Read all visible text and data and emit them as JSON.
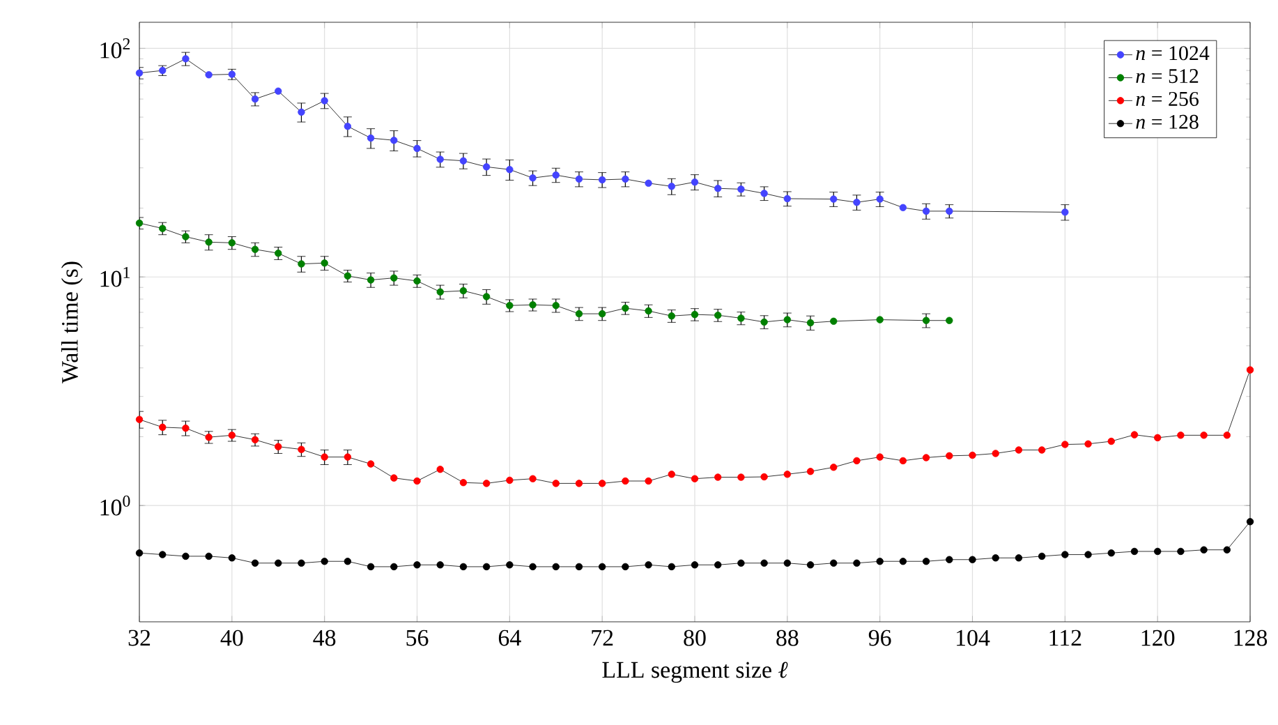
{
  "chart_data": {
    "type": "line",
    "xlabel": "LLL segment size *ℓ*",
    "ylabel": "Wall time (s)",
    "log": "y",
    "grid": true,
    "legend": "top right",
    "marker": "circle",
    "line_style": "solid",
    "xlim": [
      32,
      128
    ],
    "xticks": [
      32,
      40,
      48,
      56,
      64,
      72,
      80,
      88,
      96,
      104,
      112,
      120,
      128
    ],
    "ylim": [
      0.31,
      130
    ],
    "yticks": [
      {
        "value": 1,
        "label": "10$^{0}$"
      },
      {
        "value": 10,
        "label": "10$^{1}$"
      },
      {
        "value": 100,
        "label": "10$^{2}$"
      }
    ],
    "series": [
      {
        "name": "*n* = 1024",
        "color": "#4444ff",
        "x": [
          32,
          34,
          36,
          38,
          40,
          42,
          44,
          46,
          48,
          50,
          52,
          54,
          56,
          58,
          60,
          62,
          64,
          66,
          68,
          70,
          72,
          74,
          76,
          78,
          80,
          82,
          84,
          86,
          88,
          92,
          94,
          96,
          98,
          100,
          102,
          112
        ],
        "values": [
          78,
          80,
          90,
          76.6,
          77,
          60,
          65,
          52.6,
          59,
          45.6,
          40.5,
          39.6,
          36.5,
          32.7,
          32.2,
          30.3,
          29.5,
          27.1,
          27.9,
          26.8,
          26.6,
          26.8,
          25.7,
          24.9,
          26,
          24.4,
          24.2,
          23.2,
          22,
          21.9,
          21.2,
          21.9,
          20.1,
          19.4,
          19.4,
          19.2
        ],
        "errors": [
          4.5,
          4,
          6,
          null,
          4,
          4,
          null,
          5,
          4.5,
          4.5,
          4,
          4,
          3,
          2.5,
          2.5,
          2.5,
          3,
          2,
          2,
          2,
          2,
          2,
          null,
          2,
          2,
          2,
          1.6,
          1.6,
          1.6,
          1.6,
          1.6,
          1.6,
          null,
          1.5,
          1.3,
          1.5
        ]
      },
      {
        "name": "*n* = 512",
        "color": "#008000",
        "x": [
          32,
          34,
          36,
          38,
          40,
          42,
          44,
          46,
          48,
          50,
          52,
          54,
          56,
          58,
          60,
          62,
          64,
          66,
          68,
          70,
          72,
          74,
          76,
          78,
          80,
          82,
          84,
          86,
          88,
          90,
          92,
          96,
          100,
          102
        ],
        "values": [
          17.2,
          16.3,
          15,
          14.2,
          14.1,
          13.2,
          12.7,
          11.4,
          11.5,
          10.1,
          9.7,
          9.9,
          9.6,
          8.6,
          8.7,
          8.2,
          7.5,
          7.55,
          7.5,
          6.9,
          6.9,
          7.3,
          7.1,
          6.75,
          6.85,
          6.8,
          6.6,
          6.35,
          6.5,
          6.3,
          6.4,
          6.5,
          6.45,
          6.45
        ],
        "errors": [
          1,
          1,
          0.9,
          1.1,
          0.9,
          0.9,
          0.8,
          0.9,
          0.8,
          0.6,
          0.7,
          0.7,
          0.6,
          0.6,
          0.6,
          0.6,
          0.45,
          0.45,
          0.5,
          0.45,
          0.45,
          0.45,
          0.45,
          0.42,
          0.42,
          0.42,
          0.42,
          0.42,
          0.45,
          0.45,
          null,
          null,
          0.45,
          null
        ]
      },
      {
        "name": "*n* = 256",
        "color": "#ff0000",
        "x": [
          32,
          34,
          36,
          38,
          40,
          42,
          44,
          46,
          48,
          50,
          52,
          54,
          56,
          58,
          60,
          62,
          64,
          66,
          68,
          70,
          72,
          74,
          76,
          78,
          80,
          82,
          84,
          86,
          88,
          90,
          92,
          94,
          96,
          98,
          100,
          102,
          104,
          106,
          108,
          110,
          112,
          114,
          116,
          118,
          120,
          122,
          124,
          126,
          128
        ],
        "values": [
          2.38,
          2.2,
          2.18,
          1.99,
          2.03,
          1.94,
          1.81,
          1.76,
          1.63,
          1.63,
          1.52,
          1.32,
          1.28,
          1.44,
          1.26,
          1.25,
          1.29,
          1.31,
          1.25,
          1.25,
          1.25,
          1.28,
          1.28,
          1.37,
          1.31,
          1.33,
          1.33,
          1.335,
          1.37,
          1.41,
          1.47,
          1.57,
          1.63,
          1.57,
          1.62,
          1.65,
          1.66,
          1.69,
          1.75,
          1.75,
          1.85,
          1.86,
          1.91,
          2.04,
          1.98,
          2.03,
          2.03,
          2.03,
          3.92
        ],
        "errors": [
          0.2,
          0.16,
          0.16,
          0.12,
          0.12,
          0.12,
          0.12,
          0.12,
          0.12,
          0.12,
          null,
          null,
          null,
          null,
          null,
          null,
          null,
          null,
          null,
          null,
          null,
          null,
          null,
          null,
          null,
          null,
          null,
          null,
          null,
          null,
          null,
          null,
          null,
          null,
          null,
          null,
          null,
          null,
          null,
          null,
          null,
          null,
          null,
          null,
          null,
          null,
          null,
          null,
          null
        ]
      },
      {
        "name": "*n* = 128",
        "color": "#000000",
        "x": [
          32,
          34,
          36,
          38,
          40,
          42,
          44,
          46,
          48,
          50,
          52,
          54,
          56,
          58,
          60,
          62,
          64,
          66,
          68,
          70,
          72,
          74,
          76,
          78,
          80,
          82,
          84,
          86,
          88,
          90,
          92,
          94,
          96,
          98,
          100,
          102,
          104,
          106,
          108,
          110,
          112,
          114,
          116,
          118,
          120,
          122,
          124,
          126,
          128
        ],
        "values": [
          0.62,
          0.61,
          0.6,
          0.6,
          0.59,
          0.56,
          0.56,
          0.56,
          0.57,
          0.57,
          0.54,
          0.54,
          0.55,
          0.55,
          0.54,
          0.54,
          0.55,
          0.54,
          0.54,
          0.54,
          0.54,
          0.54,
          0.55,
          0.54,
          0.55,
          0.55,
          0.56,
          0.56,
          0.56,
          0.55,
          0.56,
          0.56,
          0.57,
          0.57,
          0.57,
          0.58,
          0.58,
          0.59,
          0.59,
          0.6,
          0.61,
          0.61,
          0.62,
          0.63,
          0.63,
          0.63,
          0.64,
          0.64,
          0.85
        ]
      }
    ]
  }
}
